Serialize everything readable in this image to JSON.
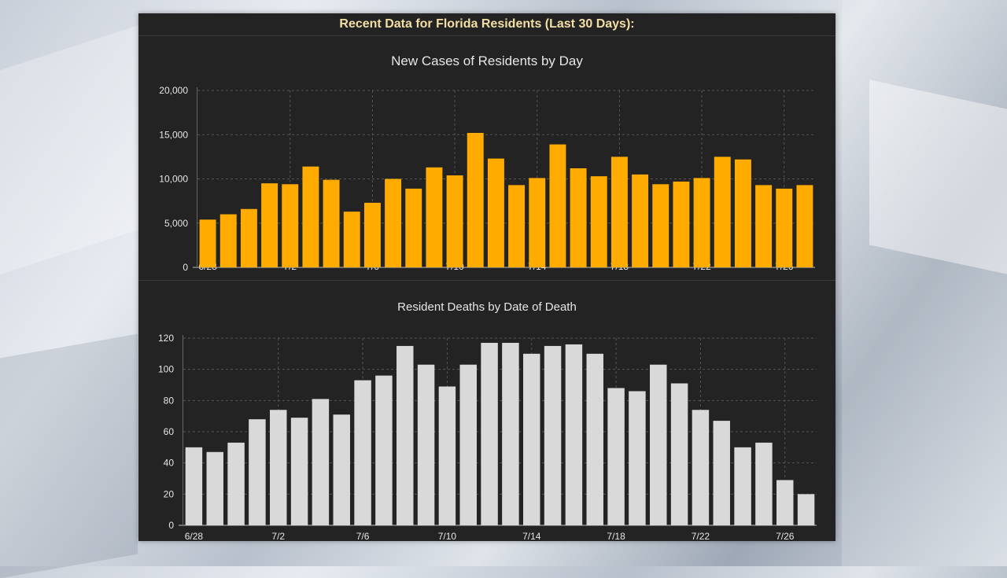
{
  "header": {
    "title": "Recent Data for Florida Residents (Last 30 Days):"
  },
  "colors": {
    "cases_bar": "#ffab00",
    "deaths_bar": "#d9d9d9",
    "panel_bg": "#232323",
    "title_text": "#f3dfa6",
    "tick_text": "#e6e6e6",
    "grid": "#555555"
  },
  "chart_data": [
    {
      "type": "bar",
      "title": "New Cases of Residents by Day",
      "xlabel": "",
      "ylabel": "",
      "ylim": [
        0,
        20000
      ],
      "yticks": [
        "0",
        "5,000",
        "10,000",
        "15,000",
        "20,000"
      ],
      "grid": true,
      "categories": [
        "6/28",
        "6/29",
        "6/30",
        "7/1",
        "7/2",
        "7/3",
        "7/4",
        "7/5",
        "7/6",
        "7/7",
        "7/8",
        "7/9",
        "7/10",
        "7/11",
        "7/12",
        "7/13",
        "7/14",
        "7/15",
        "7/16",
        "7/17",
        "7/18",
        "7/19",
        "7/20",
        "7/21",
        "7/22",
        "7/23",
        "7/24",
        "7/25",
        "7/26",
        "7/27"
      ],
      "x_tick_labels": [
        "6/28",
        "7/2",
        "7/6",
        "7/10",
        "7/14",
        "7/18",
        "7/22",
        "7/26"
      ],
      "values": [
        5400,
        6000,
        6600,
        9500,
        9400,
        11400,
        9900,
        6300,
        7300,
        10000,
        8900,
        11300,
        10400,
        15200,
        12300,
        9300,
        10100,
        13900,
        11200,
        10300,
        12500,
        10500,
        9400,
        9700,
        10100,
        12500,
        12200,
        9300,
        8900,
        9300
      ]
    },
    {
      "type": "bar",
      "title": "Resident Deaths by Date of Death",
      "xlabel": "",
      "ylabel": "",
      "ylim": [
        0,
        120
      ],
      "yticks": [
        "0",
        "20",
        "40",
        "60",
        "80",
        "100",
        "120"
      ],
      "grid": true,
      "categories": [
        "6/28",
        "6/29",
        "6/30",
        "7/1",
        "7/2",
        "7/3",
        "7/4",
        "7/5",
        "7/6",
        "7/7",
        "7/8",
        "7/9",
        "7/10",
        "7/11",
        "7/12",
        "7/13",
        "7/14",
        "7/15",
        "7/16",
        "7/17",
        "7/18",
        "7/19",
        "7/20",
        "7/21",
        "7/22",
        "7/23",
        "7/24",
        "7/25",
        "7/26",
        "7/27"
      ],
      "x_tick_labels": [
        "6/28",
        "7/2",
        "7/6",
        "7/10",
        "7/14",
        "7/18",
        "7/22",
        "7/26"
      ],
      "values": [
        50,
        47,
        53,
        68,
        74,
        69,
        81,
        71,
        93,
        96,
        115,
        103,
        89,
        103,
        117,
        117,
        110,
        115,
        116,
        110,
        88,
        86,
        103,
        91,
        74,
        67,
        50,
        53,
        29,
        20
      ]
    }
  ]
}
